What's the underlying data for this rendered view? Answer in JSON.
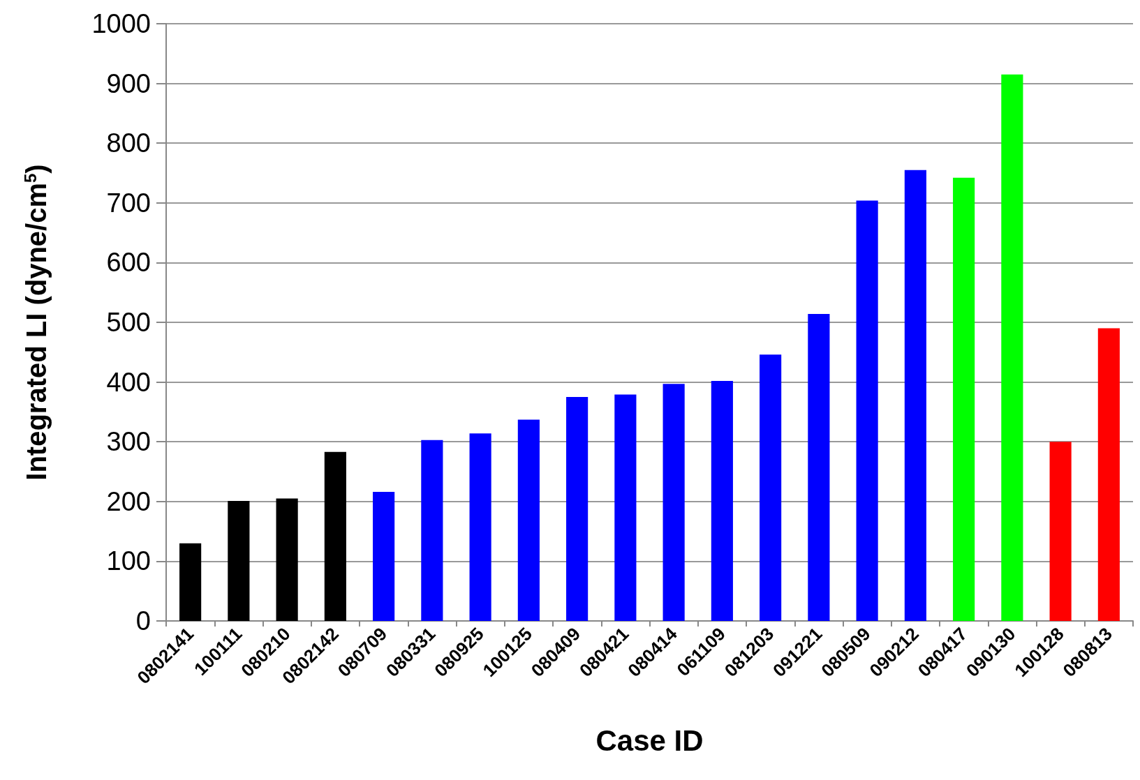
{
  "chart_data": {
    "type": "bar",
    "xlabel": "Case ID",
    "ylabel": "Integrated LI (dyne/cm$^{5}$)",
    "categories": [
      "0802141",
      "100111",
      "080210",
      "0802142",
      "080709",
      "080331",
      "080925",
      "100125",
      "080409",
      "080421",
      "080414",
      "061109",
      "081203",
      "091221",
      "080509",
      "090212",
      "080417",
      "090130",
      "100128",
      "080813"
    ],
    "values": [
      130,
      201,
      205,
      283,
      216,
      303,
      314,
      337,
      375,
      379,
      397,
      402,
      446,
      514,
      704,
      755,
      742,
      915,
      300,
      490
    ],
    "colors": [
      "#000000",
      "#000000",
      "#000000",
      "#000000",
      "#0000ff",
      "#0000ff",
      "#0000ff",
      "#0000ff",
      "#0000ff",
      "#0000ff",
      "#0000ff",
      "#0000ff",
      "#0000ff",
      "#0000ff",
      "#0000ff",
      "#0000ff",
      "#00ff00",
      "#00ff00",
      "#ff0000",
      "#ff0000"
    ],
    "ylim": [
      0,
      1000
    ],
    "yticks": [
      0,
      100,
      200,
      300,
      400,
      500,
      600,
      700,
      800,
      900,
      1000
    ],
    "grid": "y"
  }
}
